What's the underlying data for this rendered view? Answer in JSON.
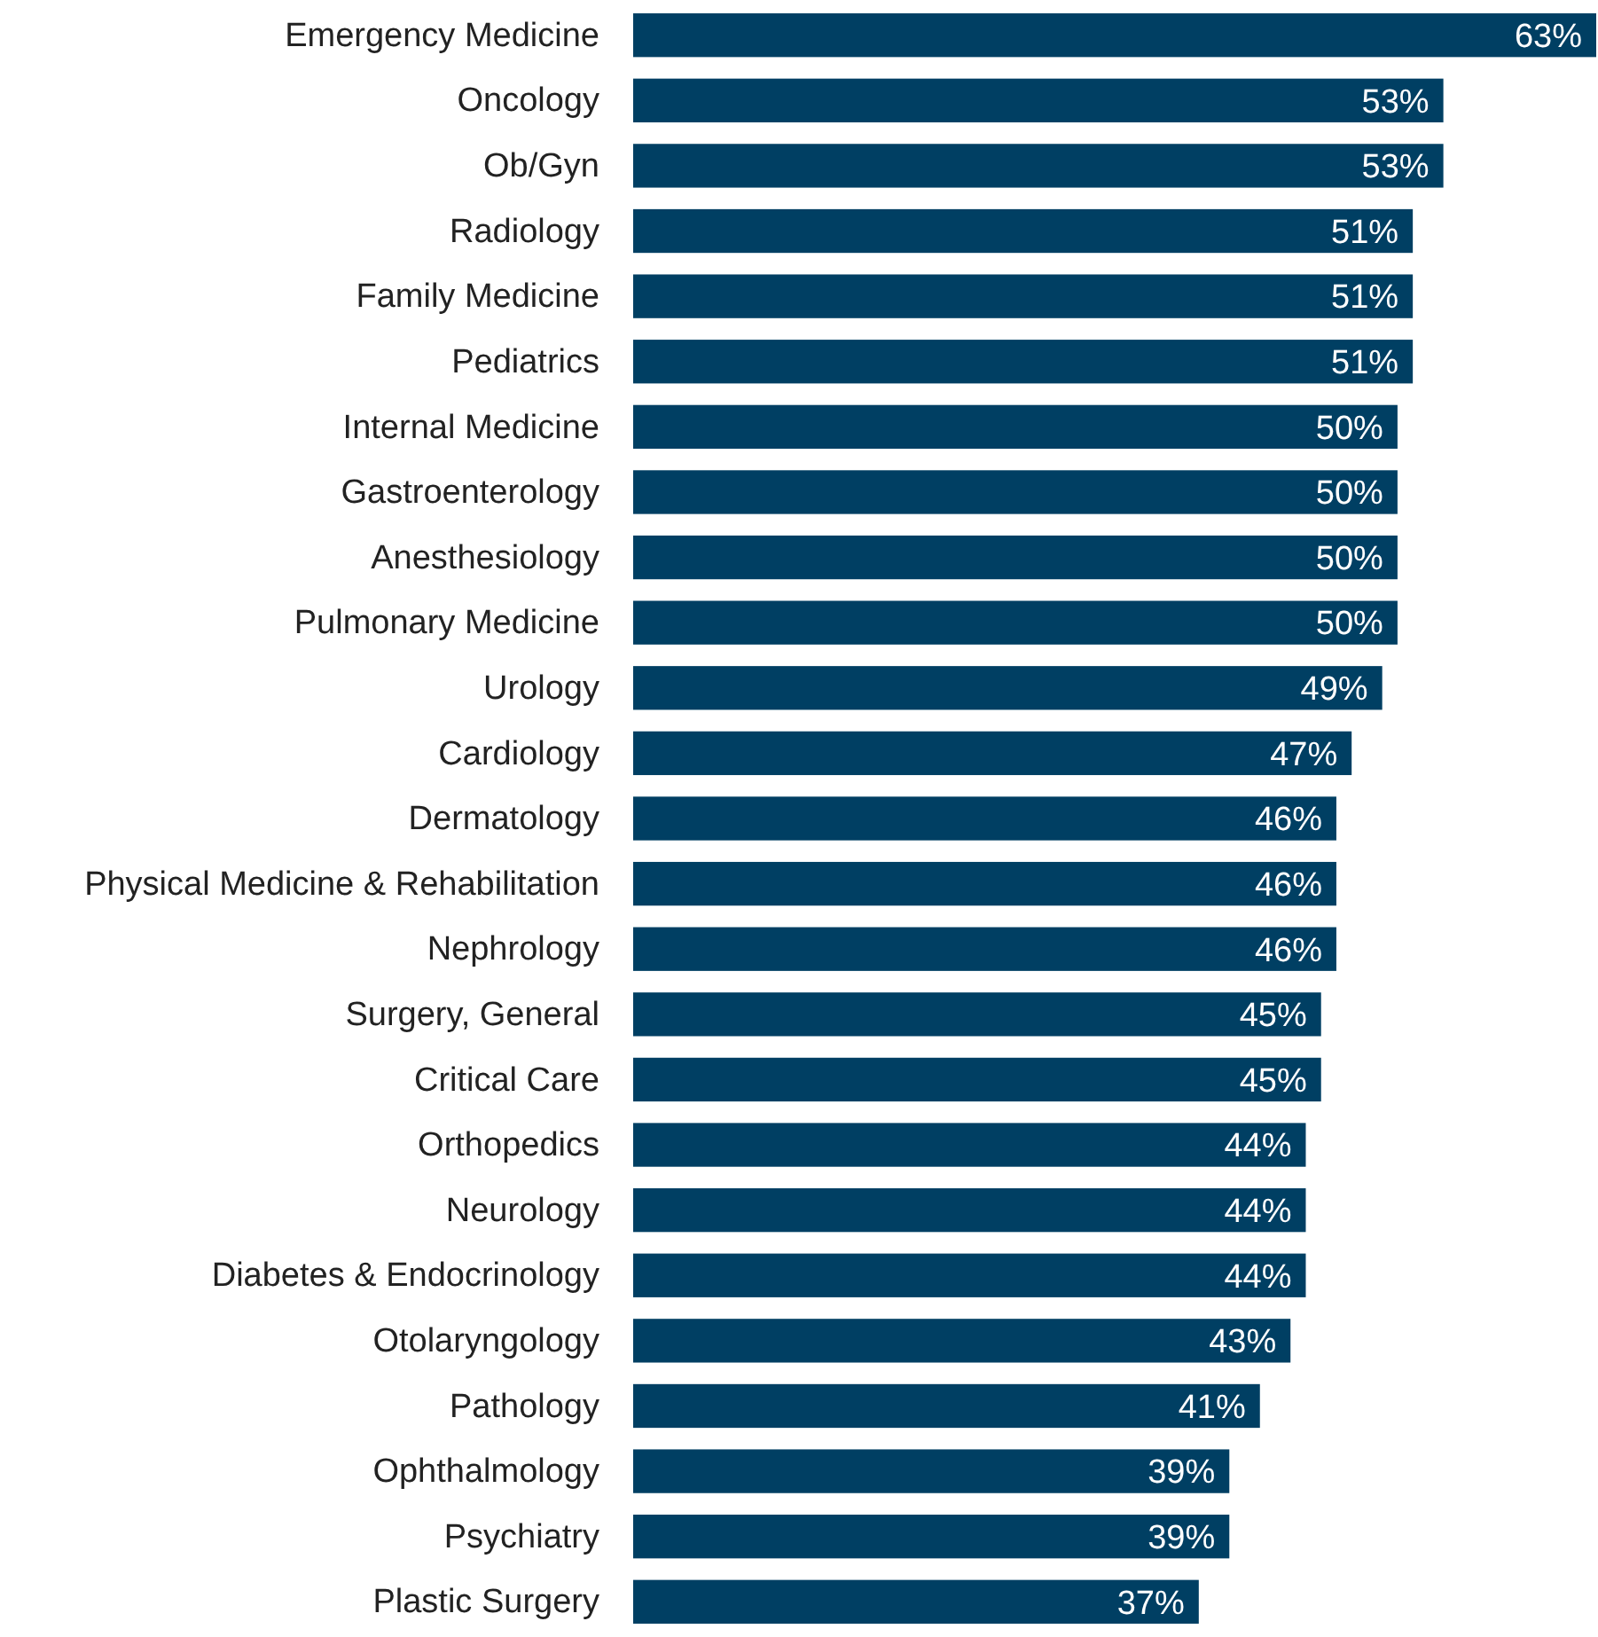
{
  "chart_data": {
    "type": "bar",
    "orientation": "horizontal",
    "categories": [
      "Emergency Medicine",
      "Oncology",
      "Ob/Gyn",
      "Radiology",
      "Family Medicine",
      "Pediatrics",
      "Internal Medicine",
      "Gastroenterology",
      "Anesthesiology",
      "Pulmonary Medicine",
      "Urology",
      "Cardiology",
      "Dermatology",
      "Physical Medicine & Rehabilitation",
      "Nephrology",
      "Surgery, General",
      "Critical Care",
      "Orthopedics",
      "Neurology",
      "Diabetes & Endocrinology",
      "Otolaryngology",
      "Pathology",
      "Ophthalmology",
      "Psychiatry",
      "Plastic Surgery"
    ],
    "values": [
      63,
      53,
      53,
      51,
      51,
      51,
      50,
      50,
      50,
      50,
      49,
      47,
      46,
      46,
      46,
      45,
      45,
      44,
      44,
      44,
      43,
      41,
      39,
      39,
      37
    ],
    "value_labels": [
      "63%",
      "53%",
      "53%",
      "51%",
      "51%",
      "51%",
      "50%",
      "50%",
      "50%",
      "50%",
      "49%",
      "47%",
      "46%",
      "46%",
      "46%",
      "45%",
      "45%",
      "44%",
      "44%",
      "44%",
      "43%",
      "41%",
      "39%",
      "39%",
      "37%"
    ],
    "color": "#003f63"
  }
}
